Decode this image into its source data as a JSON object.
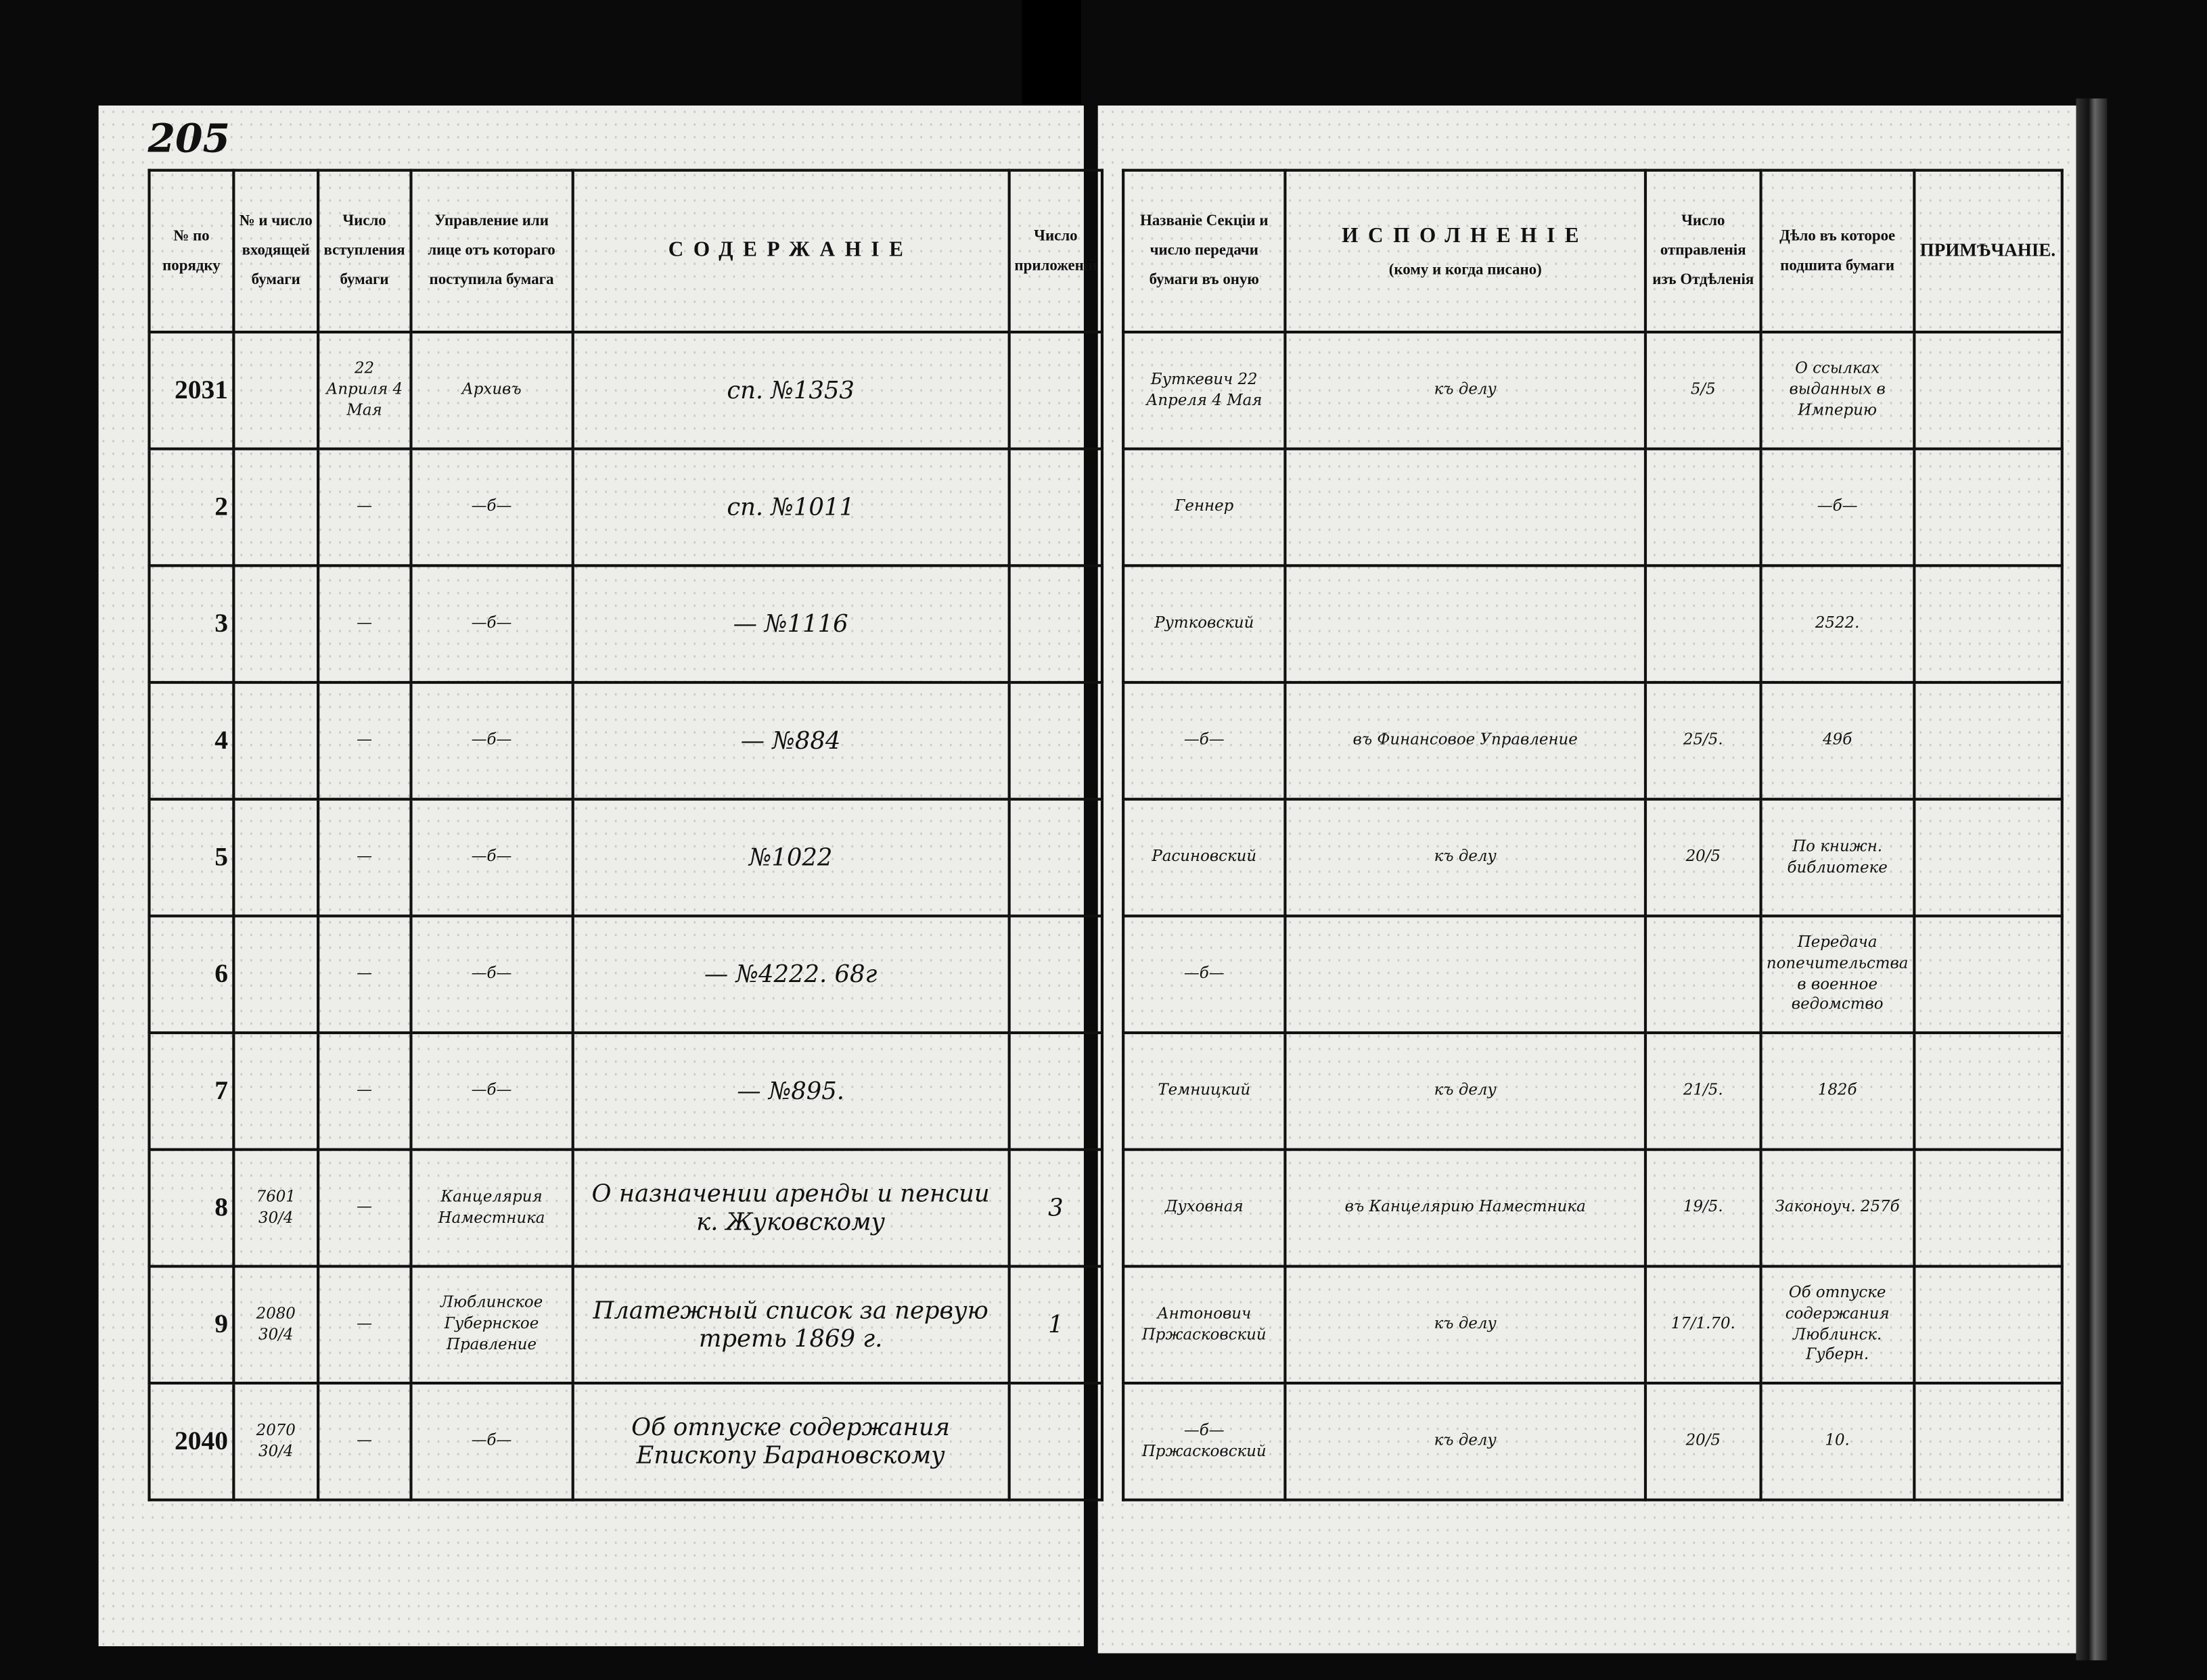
{
  "page_number": "205",
  "left": {
    "headers": [
      "№ по порядку",
      "№ и число входящей бумаги",
      "Число вступления бумаги",
      "Управление или лице отъ котораго поступила бумага",
      "СОДЕРЖАНІЕ",
      "Число приложеній"
    ],
    "rows": [
      {
        "no": "2031",
        "incoming": "",
        "date": "22 Априля 4 Мая",
        "from": "Архивъ",
        "content": "сп. №1353",
        "att": ""
      },
      {
        "no": "2",
        "incoming": "",
        "date": "—",
        "from": "—б—",
        "content": "сп. №1011",
        "att": ""
      },
      {
        "no": "3",
        "incoming": "",
        "date": "—",
        "from": "—б—",
        "content": "— №1116",
        "att": ""
      },
      {
        "no": "4",
        "incoming": "",
        "date": "—",
        "from": "—б—",
        "content": "— №884",
        "att": ""
      },
      {
        "no": "5",
        "incoming": "",
        "date": "—",
        "from": "—б—",
        "content": "№1022",
        "att": ""
      },
      {
        "no": "6",
        "incoming": "",
        "date": "—",
        "from": "—б—",
        "content": "— №4222. 68г",
        "att": ""
      },
      {
        "no": "7",
        "incoming": "",
        "date": "—",
        "from": "—б—",
        "content": "— №895.",
        "att": ""
      },
      {
        "no": "8",
        "incoming": "7601 30/4",
        "date": "—",
        "from": "Канцелярия Наместника",
        "content": "О назначении аренды и пенсии к. Жуковскому",
        "att": "3"
      },
      {
        "no": "9",
        "incoming": "2080 30/4",
        "date": "—",
        "from": "Люблинское Губернское Правление",
        "content": "Платежный список за первую треть 1869 г.",
        "att": "1"
      },
      {
        "no": "2040",
        "incoming": "2070 30/4",
        "date": "—",
        "from": "—б—",
        "content": "Об отпуске содержания Епископу Барановскому",
        "att": ""
      }
    ]
  },
  "right": {
    "headers": [
      "Названіе Секціи и число передачи бумаги въ оную",
      "ИСПОЛНЕНІЕ",
      "(кому и когда писано)",
      "Число отправленія изъ Отдѣленія",
      "Дѣло въ которое подшита бумаги",
      "ПРИМѢЧАНІЕ."
    ],
    "rows": [
      {
        "section": "Буткевич 22 Апреля 4 Мая",
        "exec": "къ делу",
        "sent": "5/5",
        "case": "О ссылках выданных в Империю",
        "note": ""
      },
      {
        "section": "Геннер",
        "exec": "",
        "sent": "",
        "case": "—б—",
        "note": ""
      },
      {
        "section": "Рутковский",
        "exec": "",
        "sent": "",
        "case": "2522.",
        "note": ""
      },
      {
        "section": "—б—",
        "exec": "въ Финансовое Управление",
        "sent": "25/5.",
        "case": "49б",
        "note": ""
      },
      {
        "section": "Расиновский",
        "exec": "къ делу",
        "sent": "20/5",
        "case": "По книжн. библиотеке",
        "note": ""
      },
      {
        "section": "—б—",
        "exec": "",
        "sent": "",
        "case": "Передача попечительства в военное ведомство",
        "note": ""
      },
      {
        "section": "Темницкий",
        "exec": "къ делу",
        "sent": "21/5.",
        "case": "182б",
        "note": ""
      },
      {
        "section": "Духовная",
        "exec": "въ Канцелярию Наместника",
        "sent": "19/5.",
        "case": "Законоуч. 257б",
        "note": ""
      },
      {
        "section": "Антонович Пржасковский",
        "exec": "къ делу",
        "sent": "17/1.70.",
        "case": "Об отпуске содержания Люблинск. Губерн.",
        "note": ""
      },
      {
        "section": "—б— Пржасковский",
        "exec": "къ делу",
        "sent": "20/5",
        "case": "10.",
        "note": ""
      }
    ]
  }
}
